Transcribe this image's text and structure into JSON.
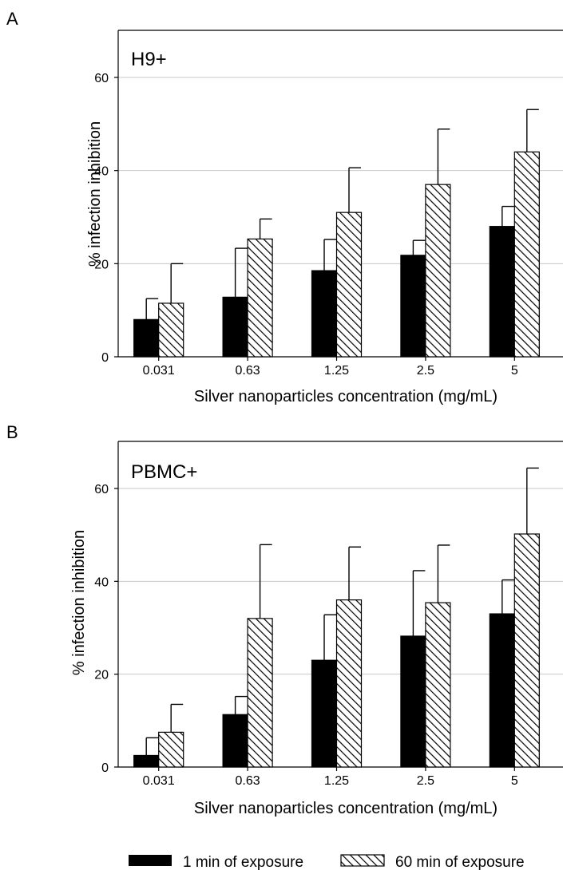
{
  "chart_data": [
    {
      "type": "bar",
      "panel": "A",
      "panel_label": "H9+",
      "categories": [
        "0.031",
        "0.63",
        "1.25",
        "2.5",
        "5"
      ],
      "series": [
        {
          "name": "1 min of exposure",
          "values": [
            8,
            12.8,
            18.5,
            21.8,
            28
          ],
          "error": [
            4.5,
            10.5,
            6.7,
            3.2,
            4.3
          ],
          "fill": "solid",
          "color": "#000000"
        },
        {
          "name": "60 min of exposure",
          "values": [
            11.5,
            25.3,
            31,
            37,
            44
          ],
          "error": [
            8.5,
            4.3,
            9.6,
            11.9,
            9.1
          ],
          "fill": "hatched",
          "color": "#000000"
        }
      ],
      "xlabel": "Silver nanoparticles concentration (mg/mL)",
      "ylabel": "% infection inhibition",
      "ylim": [
        0,
        60
      ],
      "yticks": [
        0,
        20,
        40,
        60
      ],
      "grid": true
    },
    {
      "type": "bar",
      "panel": "B",
      "panel_label": "PBMC+",
      "categories": [
        "0.031",
        "0.63",
        "1.25",
        "2.5",
        "5"
      ],
      "series": [
        {
          "name": "1 min of exposure",
          "values": [
            2.5,
            11.3,
            23,
            28.2,
            33
          ],
          "error": [
            3.8,
            3.9,
            9.8,
            14.1,
            7.3
          ],
          "fill": "solid",
          "color": "#000000"
        },
        {
          "name": "60 min of exposure",
          "values": [
            7.5,
            32,
            36,
            35.4,
            50.2
          ],
          "error": [
            6,
            15.9,
            11.4,
            12.4,
            14.2
          ],
          "fill": "hatched",
          "color": "#000000"
        }
      ],
      "xlabel": "Silver nanoparticles concentration (mg/mL)",
      "ylabel": "% infection inhibition",
      "ylim": [
        0,
        60
      ],
      "yticks": [
        0,
        20,
        40,
        60
      ],
      "grid": true
    }
  ],
  "legend": {
    "placement": "bottom",
    "items": [
      {
        "label": "1 min of exposure",
        "fill": "solid"
      },
      {
        "label": "60 min of exposure",
        "fill": "hatched"
      }
    ]
  }
}
